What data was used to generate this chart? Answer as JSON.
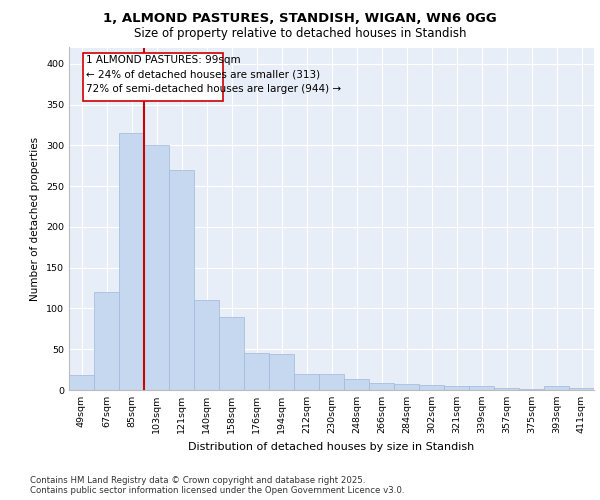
{
  "title1": "1, ALMOND PASTURES, STANDISH, WIGAN, WN6 0GG",
  "title2": "Size of property relative to detached houses in Standish",
  "xlabel": "Distribution of detached houses by size in Standish",
  "ylabel": "Number of detached properties",
  "footer1": "Contains HM Land Registry data © Crown copyright and database right 2025.",
  "footer2": "Contains public sector information licensed under the Open Government Licence v3.0.",
  "annotation_title": "1 ALMOND PASTURES: 99sqm",
  "annotation_line1": "← 24% of detached houses are smaller (313)",
  "annotation_line2": "72% of semi-detached houses are larger (944) →",
  "bar_color": "#c5d8f0",
  "bar_edge_color": "#a0b8d8",
  "red_line_color": "#cc0000",
  "background_color": "#e8eef8",
  "categories": [
    "49sqm",
    "67sqm",
    "85sqm",
    "103sqm",
    "121sqm",
    "140sqm",
    "158sqm",
    "176sqm",
    "194sqm",
    "212sqm",
    "230sqm",
    "248sqm",
    "266sqm",
    "284sqm",
    "302sqm",
    "321sqm",
    "339sqm",
    "357sqm",
    "375sqm",
    "393sqm",
    "411sqm"
  ],
  "values": [
    18,
    120,
    315,
    300,
    270,
    110,
    90,
    45,
    44,
    20,
    20,
    14,
    8,
    7,
    6,
    5,
    5,
    2,
    1,
    5,
    2
  ],
  "ylim": [
    0,
    420
  ],
  "yticks": [
    0,
    50,
    100,
    150,
    200,
    250,
    300,
    350,
    400
  ]
}
